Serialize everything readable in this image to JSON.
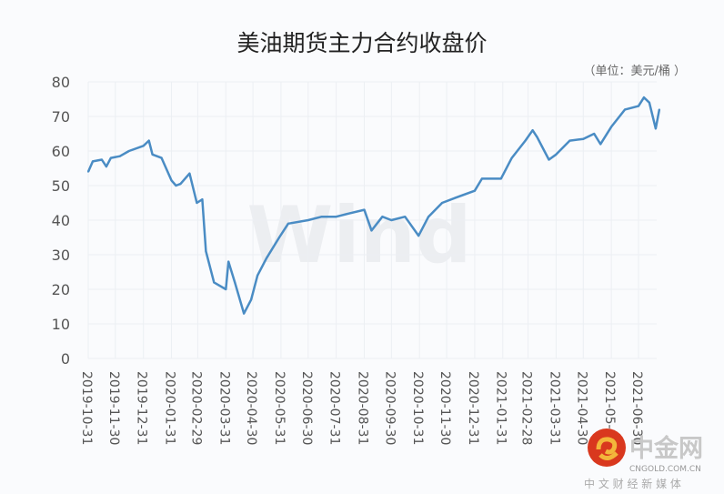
{
  "chart_data": {
    "type": "line",
    "title": "美油期货主力合约收盘价",
    "unit_label": "（单位：美元/桶 ）",
    "ylim": [
      0,
      80
    ],
    "yticks": [
      0,
      10,
      20,
      30,
      40,
      50,
      60,
      70,
      80
    ],
    "xticks": [
      "2019-10-31",
      "2019-11-30",
      "2019-12-31",
      "2020-01-31",
      "2020-02-29",
      "2020-03-31",
      "2020-04-30",
      "2020-05-31",
      "2020-06-30",
      "2020-07-31",
      "2020-08-31",
      "2020-09-30",
      "2020-10-31",
      "2020-11-30",
      "2020-12-31",
      "2021-01-31",
      "2021-02-28",
      "2021-03-31",
      "2021-04-30",
      "2021-05-31",
      "2021-06-30"
    ],
    "grid": true,
    "line_color": "#4a8cc4",
    "watermark": "Wind",
    "series": [
      {
        "x": [
          "2019-10-31",
          "2019-11-05",
          "2019-11-15",
          "2019-11-20",
          "2019-11-25",
          "2019-12-05",
          "2019-12-15",
          "2019-12-31",
          "2020-01-06",
          "2020-01-10",
          "2020-01-20",
          "2020-01-31",
          "2020-02-05",
          "2020-02-10",
          "2020-02-20",
          "2020-02-28",
          "2020-03-05",
          "2020-03-09",
          "2020-03-18",
          "2020-03-31",
          "2020-04-03",
          "2020-04-10",
          "2020-04-20",
          "2020-04-28",
          "2020-05-05",
          "2020-05-15",
          "2020-05-29",
          "2020-06-08",
          "2020-06-30",
          "2020-07-15",
          "2020-07-31",
          "2020-08-15",
          "2020-08-31",
          "2020-09-08",
          "2020-09-20",
          "2020-09-30",
          "2020-10-15",
          "2020-10-30",
          "2020-11-10",
          "2020-11-25",
          "2020-12-10",
          "2020-12-31",
          "2021-01-08",
          "2021-01-29",
          "2021-02-10",
          "2021-02-25",
          "2021-03-05",
          "2021-03-10",
          "2021-03-18",
          "2021-03-23",
          "2021-03-31",
          "2021-04-15",
          "2021-04-30",
          "2021-05-12",
          "2021-05-19",
          "2021-05-31",
          "2021-06-15",
          "2021-06-30",
          "2021-07-06",
          "2021-07-12",
          "2021-07-19",
          "2021-07-23"
        ],
        "y": [
          54,
          57,
          57.5,
          55.5,
          58,
          58.5,
          60,
          61.5,
          63,
          59,
          58,
          51.5,
          50,
          50.5,
          53.5,
          45,
          46,
          31,
          22,
          20,
          28,
          22,
          13,
          17,
          24,
          29,
          35,
          39,
          40,
          41,
          41,
          42,
          43,
          37,
          41,
          40,
          41,
          35.5,
          41,
          45,
          46.5,
          48.5,
          52,
          52,
          58,
          63,
          66,
          64,
          60,
          57.5,
          59,
          63,
          63.5,
          65,
          62,
          67,
          72,
          73,
          75.5,
          74,
          66.5,
          72
        ]
      }
    ]
  },
  "logo": {
    "name": "中金网",
    "domain": "CNGOLD.COM.CN",
    "tagline": "中 文 财 经 新 媒 体"
  }
}
